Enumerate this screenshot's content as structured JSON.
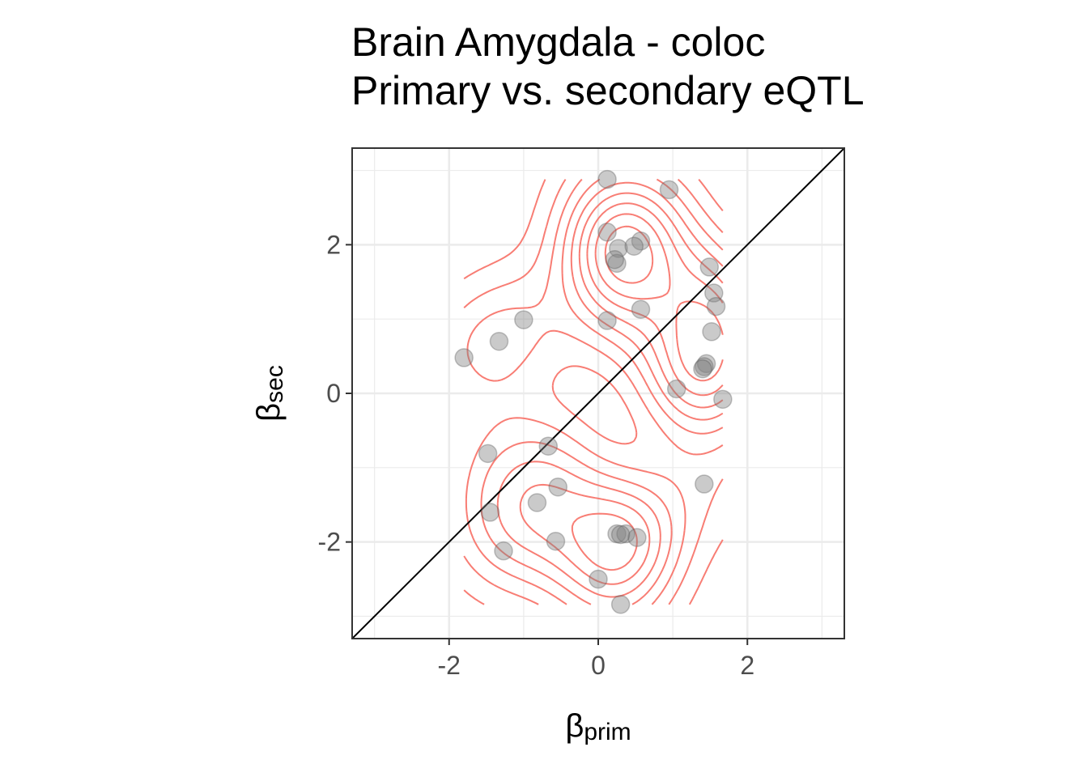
{
  "chart_data": {
    "type": "scatter",
    "title_line1": "Brain Amygdala - coloc",
    "title_line2": "Primary vs. secondary eQTL",
    "xlabel": {
      "symbol": "β",
      "subscript": "prim"
    },
    "ylabel": {
      "symbol": "β",
      "subscript": "sec"
    },
    "xlim": [
      -3.3,
      3.3
    ],
    "ylim": [
      -3.3,
      3.3
    ],
    "xticks": [
      -2,
      0,
      2
    ],
    "yticks": [
      -2,
      0,
      2
    ],
    "xtick_labels": [
      "-2",
      "0",
      "2"
    ],
    "ytick_labels": [
      "-2",
      "0",
      "2"
    ],
    "grid": true,
    "reference_line": "y = x",
    "point_color": "#808080",
    "contour_color": "#F8766D",
    "points": [
      [
        0.12,
        2.88
      ],
      [
        0.95,
        2.74
      ],
      [
        0.12,
        2.17
      ],
      [
        0.57,
        2.05
      ],
      [
        0.27,
        1.95
      ],
      [
        0.48,
        1.98
      ],
      [
        0.25,
        1.75
      ],
      [
        0.22,
        1.8
      ],
      [
        1.49,
        1.7
      ],
      [
        1.55,
        1.35
      ],
      [
        1.58,
        1.17
      ],
      [
        0.57,
        1.13
      ],
      [
        0.12,
        0.98
      ],
      [
        -1.0,
        0.99
      ],
      [
        1.52,
        0.83
      ],
      [
        -1.33,
        0.7
      ],
      [
        -1.8,
        0.48
      ],
      [
        1.45,
        0.4
      ],
      [
        1.42,
        0.36
      ],
      [
        1.4,
        0.33
      ],
      [
        1.05,
        0.06
      ],
      [
        1.67,
        -0.08
      ],
      [
        -0.67,
        -0.71
      ],
      [
        -1.48,
        -0.81
      ],
      [
        -0.54,
        -1.26
      ],
      [
        1.42,
        -1.22
      ],
      [
        -0.82,
        -1.47
      ],
      [
        -1.45,
        -1.6
      ],
      [
        0.25,
        -1.89
      ],
      [
        0.37,
        -1.89
      ],
      [
        0.52,
        -1.94
      ],
      [
        0.3,
        -1.9
      ],
      [
        -0.57,
        -1.99
      ],
      [
        -1.27,
        -2.12
      ],
      [
        0.0,
        -2.5
      ],
      [
        0.3,
        -2.84
      ]
    ]
  }
}
